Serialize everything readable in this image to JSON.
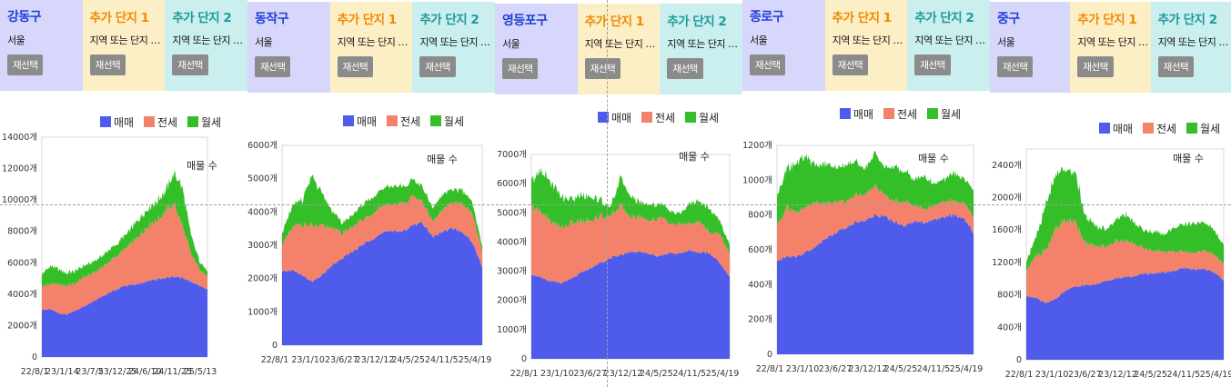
{
  "legend_labels": [
    "매매",
    "전세",
    "월세"
  ],
  "colors": {
    "매매": "#4f5bea",
    "전세": "#f4826a",
    "월세": "#34be28"
  },
  "series_count_label": "매물 수",
  "region_caption": "서울",
  "reselect_label": "재선택",
  "slot_titles": [
    "추가 단지 1",
    "추가 단지 2"
  ],
  "slot_caption": "지역 또는 단지 …",
  "panels": [
    {
      "district": "강동구",
      "chart_data": {
        "type": "area",
        "title": "매물 수",
        "x_ticks": [
          "22/8/1",
          "23/1/14",
          "23/7/5",
          "23/12/25",
          "24/6/10",
          "24/11/25",
          "25/5/13"
        ],
        "y_ticks": [
          "0",
          "2000개",
          "4000개",
          "6000개",
          "8000개",
          "10000개",
          "12000개",
          "14000개"
        ],
        "ylim": [
          0,
          14000
        ],
        "legend": "top-right",
        "series": [
          {
            "name": "매매",
            "values": [
              3000,
              3050,
              2800,
              2700,
              2950,
              3200,
              3500,
              3800,
              4050,
              4300,
              4550,
              4600,
              4700,
              4850,
              4950,
              5050,
              5100,
              5050,
              4800,
              4550,
              4300
            ]
          },
          {
            "name": "전세",
            "values": [
              1500,
              1600,
              1800,
              1850,
              1700,
              1900,
              1800,
              1850,
              1950,
              2100,
              2300,
              2700,
              3200,
              3600,
              3800,
              4300,
              4600,
              3300,
              1800,
              1100,
              800
            ]
          },
          {
            "name": "월세",
            "values": [
              800,
              1100,
              1000,
              800,
              800,
              700,
              700,
              700,
              750,
              750,
              850,
              1000,
              1100,
              1100,
              1200,
              1300,
              1950,
              2400,
              1200,
              500,
              350
            ]
          }
        ]
      }
    },
    {
      "district": "동작구",
      "chart_data": {
        "type": "area",
        "title": "매물 수",
        "x_ticks": [
          "22/8/1",
          "23/1/10",
          "23/6/27",
          "23/12/12",
          "24/5/25",
          "24/11/5",
          "25/4/19"
        ],
        "y_ticks": [
          "0",
          "1000개",
          "2000개",
          "3000개",
          "4000개",
          "5000개",
          "6000개"
        ],
        "ylim": [
          0,
          6000
        ],
        "legend": "top-right",
        "series": [
          {
            "name": "매매",
            "values": [
              2200,
              2250,
              2100,
              1900,
              2100,
              2400,
              2600,
              2800,
              3000,
              3200,
              3350,
              3450,
              3400,
              3600,
              3700,
              3250,
              3400,
              3500,
              3400,
              3100,
              2350
            ]
          },
          {
            "name": "전세",
            "values": [
              800,
              1250,
              1550,
              1650,
              1450,
              1150,
              750,
              750,
              750,
              750,
              800,
              800,
              850,
              850,
              650,
              450,
              650,
              800,
              850,
              850,
              450
            ]
          },
          {
            "name": "월세",
            "values": [
              350,
              650,
              750,
              1500,
              950,
              500,
              300,
              350,
              450,
              500,
              500,
              550,
              500,
              500,
              450,
              400,
              450,
              400,
              400,
              350,
              150
            ]
          }
        ]
      }
    },
    {
      "district": "영등포구",
      "chart_data": {
        "type": "area",
        "title": "매물 수",
        "x_ticks": [
          "22/8/1",
          "23/1/10",
          "23/6/27",
          "23/12/12",
          "24/5/25",
          "24/11/5",
          "25/4/19"
        ],
        "y_ticks": [
          "0",
          "1000개",
          "2000개",
          "3000개",
          "4000개",
          "5000개",
          "6000개",
          "7000개"
        ],
        "ylim": [
          0,
          7000
        ],
        "legend": "top-right",
        "series": [
          {
            "name": "매매",
            "values": [
              2900,
              2800,
              2650,
              2600,
              2750,
              2950,
              3100,
              3300,
              3450,
              3550,
              3700,
              3650,
              3600,
              3500,
              3650,
              3600,
              3700,
              3650,
              3600,
              3300,
              2800
            ]
          },
          {
            "name": "전세",
            "values": [
              2300,
              2250,
              2050,
              1900,
              1900,
              1750,
              1650,
              1600,
              1450,
              1700,
              1200,
              1200,
              1150,
              1350,
              1000,
              1000,
              900,
              1050,
              700,
              1000,
              800
            ]
          },
          {
            "name": "월세",
            "values": [
              900,
              1450,
              1350,
              1050,
              800,
              900,
              800,
              550,
              300,
              950,
              700,
              500,
              550,
              450,
              450,
              350,
              700,
              700,
              800,
              450,
              300
            ]
          }
        ]
      }
    },
    {
      "district": "종로구",
      "chart_data": {
        "type": "area",
        "title": "매물 수",
        "x_ticks": [
          "22/8/1",
          "23/1/10",
          "23/6/27",
          "23/12/12",
          "24/5/25",
          "24/11/5",
          "25/4/19"
        ],
        "y_ticks": [
          "0",
          "200개",
          "400개",
          "600개",
          "800개",
          "1000개",
          "1200개"
        ],
        "ylim": [
          0,
          1200
        ],
        "legend": "top-right",
        "series": [
          {
            "name": "매매",
            "values": [
              540,
              560,
              560,
              590,
              620,
              670,
              700,
              730,
              760,
              770,
              800,
              790,
              760,
              740,
              760,
              760,
              770,
              790,
              800,
              780,
              700
            ]
          },
          {
            "name": "전세",
            "values": [
              200,
              280,
              250,
              260,
              250,
              200,
              180,
              150,
              160,
              150,
              170,
              120,
              120,
              140,
              90,
              80,
              80,
              90,
              80,
              90,
              90
            ]
          },
          {
            "name": "월세",
            "values": [
              160,
              230,
              280,
              290,
              210,
              230,
              190,
              210,
              190,
              150,
              190,
              160,
              200,
              170,
              150,
              190,
              120,
              130,
              160,
              140,
              150
            ]
          }
        ]
      }
    },
    {
      "district": "중구",
      "chart_data": {
        "type": "area",
        "title": "매물 수",
        "x_ticks": [
          "22/8/1",
          "23/1/10",
          "23/6/27",
          "23/12/12",
          "24/5/25",
          "24/11/5",
          "25/4/19"
        ],
        "y_ticks": [
          "0",
          "400개",
          "800개",
          "1200개",
          "1600개",
          "2000개",
          "2400개"
        ],
        "ylim": [
          0,
          2600
        ],
        "legend": "top-right",
        "series": [
          {
            "name": "매매",
            "values": [
              780,
              760,
              700,
              750,
              860,
              900,
              920,
              930,
              970,
              1000,
              1020,
              1030,
              1060,
              1070,
              1080,
              1100,
              1140,
              1110,
              1120,
              1080,
              980
            ]
          },
          {
            "name": "전세",
            "values": [
              320,
              520,
              650,
              860,
              880,
              780,
              510,
              470,
              430,
              470,
              440,
              400,
              300,
              280,
              260,
              240,
              200,
              200,
              230,
              220,
              200
            ]
          },
          {
            "name": "월세",
            "values": [
              110,
              230,
              580,
              660,
              640,
              600,
              330,
              250,
              210,
              260,
              330,
              250,
              220,
              230,
              210,
              300,
              340,
              370,
              350,
              300,
              230
            ]
          }
        ]
      }
    }
  ]
}
